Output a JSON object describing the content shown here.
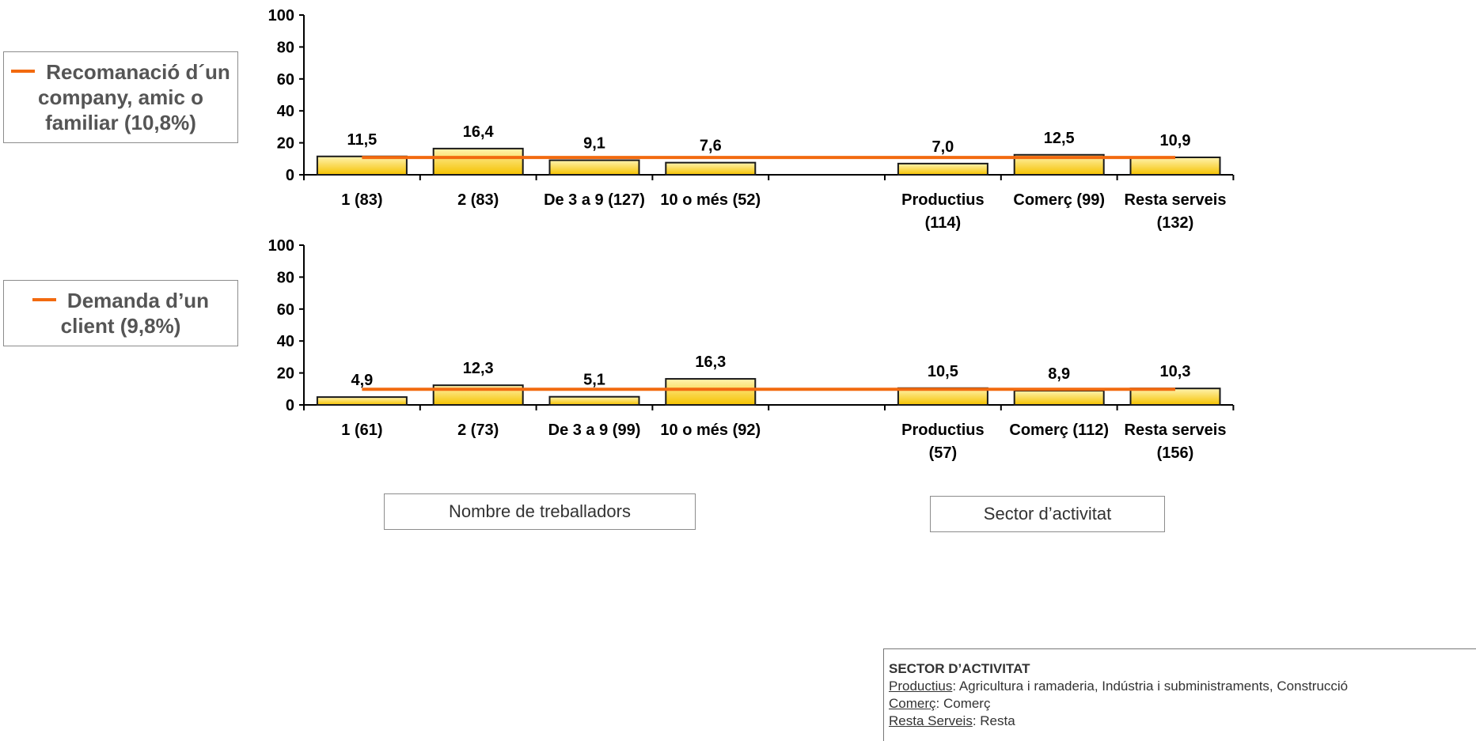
{
  "colors": {
    "bar_top": "#fff3b0",
    "bar_bottom": "#f5c200",
    "bar_stroke": "#1a1a1a",
    "reference_line": "#f26a0f",
    "legend_text": "#555555"
  },
  "chart_data": [
    {
      "type": "bar",
      "legend": {
        "text": "Recomanació d´un company, amic o familiar (10,8%)",
        "placement": "left"
      },
      "reference_line": 10.8,
      "ylim": [
        0,
        100
      ],
      "yticks": [
        "0",
        "20",
        "40",
        "60",
        "80",
        "100"
      ],
      "grid": false,
      "categories": [
        {
          "label": [
            "1 (83)"
          ],
          "value": 11.5,
          "value_label": "11,5"
        },
        {
          "label": [
            "2 (83)"
          ],
          "value": 16.4,
          "value_label": "16,4"
        },
        {
          "label": [
            "De 3 a 9 (127)"
          ],
          "value": 9.1,
          "value_label": "9,1"
        },
        {
          "label": [
            "10 o més (52)"
          ],
          "value": 7.6,
          "value_label": "7,6"
        },
        {
          "label": [
            ""
          ],
          "value": null,
          "value_label": ""
        },
        {
          "label": [
            "Productius",
            "(114)"
          ],
          "value": 7.0,
          "value_label": "7,0"
        },
        {
          "label": [
            "Comerç (99)"
          ],
          "value": 12.5,
          "value_label": "12,5"
        },
        {
          "label": [
            "Resta serveis",
            "(132)"
          ],
          "value": 10.9,
          "value_label": "10,9"
        }
      ]
    },
    {
      "type": "bar",
      "legend": {
        "text": "Demanda d’un client (9,8%)",
        "placement": "left"
      },
      "reference_line": 9.8,
      "ylim": [
        0,
        100
      ],
      "yticks": [
        "0",
        "20",
        "40",
        "60",
        "80",
        "100"
      ],
      "grid": false,
      "categories": [
        {
          "label": [
            "1 (61)"
          ],
          "value": 4.9,
          "value_label": "4,9"
        },
        {
          "label": [
            "2 (73)"
          ],
          "value": 12.3,
          "value_label": "12,3"
        },
        {
          "label": [
            "De 3 a 9 (99)"
          ],
          "value": 5.1,
          "value_label": "5,1"
        },
        {
          "label": [
            "10 o més (92)"
          ],
          "value": 16.3,
          "value_label": "16,3"
        },
        {
          "label": [
            ""
          ],
          "value": null,
          "value_label": ""
        },
        {
          "label": [
            "Productius",
            "(57)"
          ],
          "value": 10.5,
          "value_label": "10,5"
        },
        {
          "label": [
            "Comerç (112)"
          ],
          "value": 8.9,
          "value_label": "8,9"
        },
        {
          "label": [
            "Resta serveis",
            "(156)"
          ],
          "value": 10.3,
          "value_label": "10,3"
        }
      ]
    }
  ],
  "group_labels": {
    "workers": "Nombre de treballadors",
    "sector": "Sector d’activitat"
  },
  "note": {
    "title": "SECTOR D’ACTIVITAT",
    "lines": [
      {
        "term": "Productius",
        "text": ": Agricultura i ramaderia, Indústria i subministraments, Construcció"
      },
      {
        "term": "Comerç",
        "text": ": Comerç"
      },
      {
        "term": "Resta Serveis",
        "text": ": Resta"
      }
    ]
  }
}
